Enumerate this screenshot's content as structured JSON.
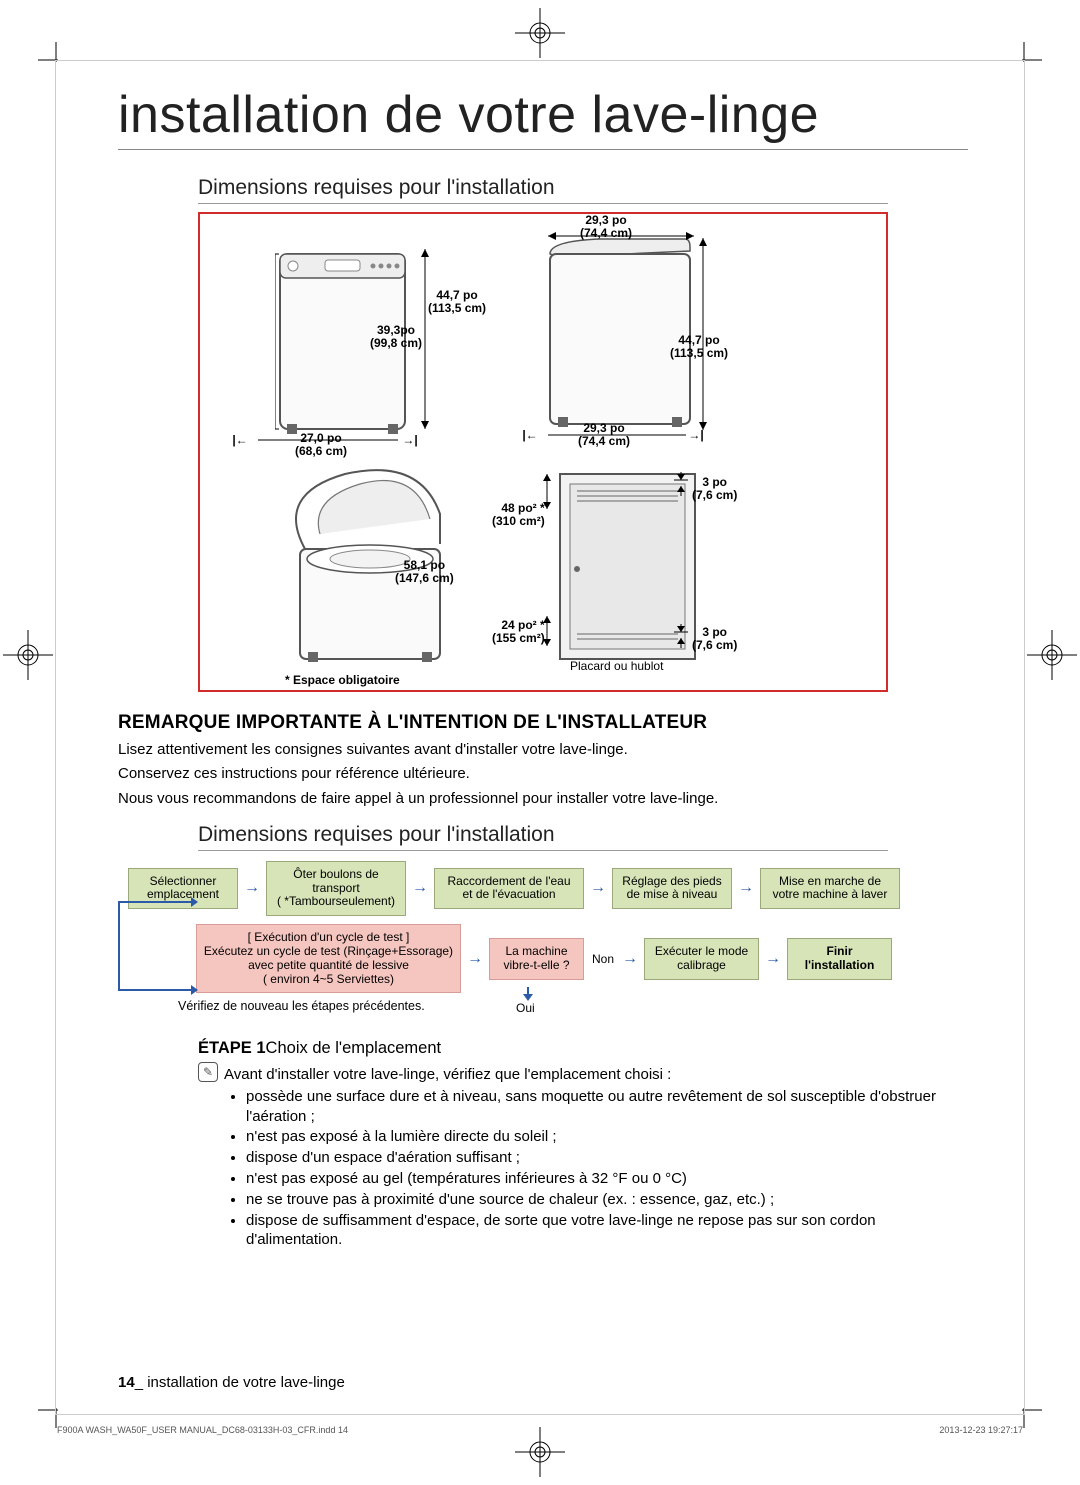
{
  "title": "installation de votre lave-linge",
  "section1": "Dimensions requises pour l'installation",
  "diagram": {
    "dim_29_3_top": "29,3 po\n(74,4 cm)",
    "dim_44_7_left": "44,7 po\n(113,5 cm)",
    "dim_39_3": "39,3po\n(99,8 cm)",
    "dim_44_7_right": "44,7 po\n(113,5 cm)",
    "dim_27_0": "27,0 po\n(68,6 cm)",
    "dim_29_3_bottom": "29,3 po\n(74,4 cm)",
    "dim_48_sq": "48 po² *\n(310 cm²)",
    "dim_3_top": "3 po\n(7,6 cm)",
    "dim_58_1": "58,1 po\n(147,6 cm)",
    "dim_24_sq": "24 po² *\n(155 cm²)",
    "dim_3_bottom": "3 po\n(7,6 cm)",
    "closet_label": "Placard ou hublot",
    "footnote": "* Espace obligatoire"
  },
  "remark_heading": "REMARQUE IMPORTANTE À L'INTENTION DE L'INSTALLATEUR",
  "remark_lines": [
    "Lisez attentivement les consignes suivantes avant d'installer votre lave-linge.",
    "Conservez ces instructions pour référence ultérieure.",
    "Nous vous recommandons de faire appel à un professionnel pour installer votre lave-linge."
  ],
  "section2": "Dimensions requises pour l'installation",
  "flow": {
    "row1": [
      "Sélectionner\nemplacement",
      "Ôter boulons de\ntransport\n( *Tambourseulement)",
      "Raccordement de l'eau\net de l'évacuation",
      "Réglage des pieds\nde mise à niveau",
      "Mise en marche de\nvotre machine à laver"
    ],
    "test_box": "[ Exécution d'un cycle de test ]\nExécutez un cycle de test (Rinçage+Essorage)\navec petite quantité de lessive\n( environ 4~5 Serviettes)",
    "vibrate": "La machine\nvibre-t-elle ?",
    "calibrage": "Exécuter le mode\ncalibrage",
    "finish": "Finir\nl'installation",
    "oui": "Oui",
    "non": "Non",
    "verify": "Vérifiez de nouveau les étapes précédentes."
  },
  "etape": {
    "label": "ÉTAPE 1",
    "title": "Choix de l'emplacement"
  },
  "etape_intro": "Avant d'installer votre lave-linge, vérifiez que l'emplacement choisi :",
  "bullets": [
    "possède une surface dure et à niveau, sans moquette ou autre revêtement de sol susceptible d'obstruer l'aération ;",
    "n'est pas exposé à la lumière directe du soleil ;",
    "dispose d'un espace d'aération suffisant ;",
    "n'est pas exposé au gel (températures inférieures à 32 °F ou 0 °C)",
    "ne se trouve pas à proximité d'une source de chaleur (ex. : essence, gaz, etc.) ;",
    "dispose de suffisamment d'espace, de sorte que votre lave-linge ne repose pas sur son cordon d'alimentation."
  ],
  "footer": {
    "page": "14",
    "text": "_ installation de votre lave-linge"
  },
  "file": {
    "name": "F900A WASH_WA50F_USER MANUAL_DC68-03133H-03_CFR.indd   14",
    "stamp": "2013-12-23   19:27:17"
  }
}
